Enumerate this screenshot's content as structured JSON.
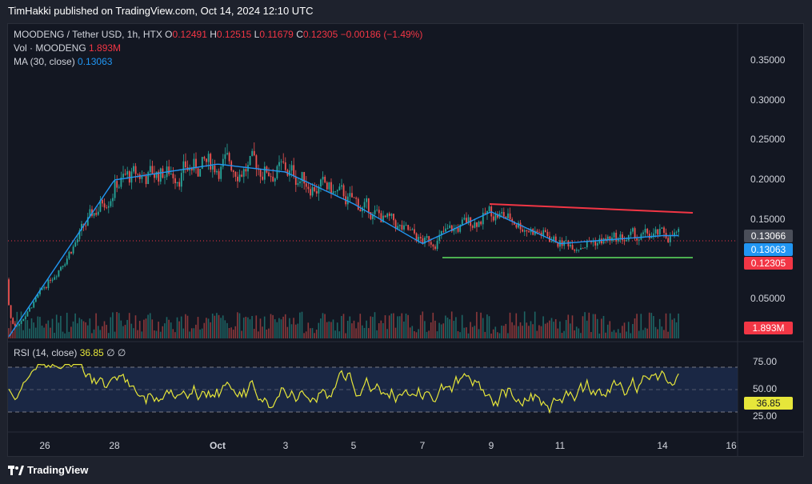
{
  "header": {
    "publisher_text": "TimHakki published on TradingView.com, Oct 14, 2024 12:10 UTC"
  },
  "legend": {
    "symbol": "MOODENG / Tether USD, 1h, HTX",
    "open_label": "O",
    "open": "0.12491",
    "high_label": "H",
    "high": "0.12515",
    "low_label": "L",
    "low": "0.11679",
    "close_label": "C",
    "close": "0.12305",
    "change": "−0.00186 (−1.49%)",
    "vol_label": "Vol · MOODENG",
    "vol_value": "1.893M",
    "ma_label": "MA (30, close)",
    "ma_value": "0.13063",
    "rsi_label": "RSI (14, close)",
    "rsi_value": "36.85",
    "rsi_extra1": "∅",
    "rsi_extra2": "∅"
  },
  "price_axis": {
    "labels": [
      "0.35000",
      "0.30000",
      "0.25000",
      "0.20000",
      "0.15000",
      "0.05000"
    ],
    "box_ma_close": "0.13066",
    "box_ma": "0.13063",
    "box_close": "0.12305",
    "box_volume": "1.893M"
  },
  "rsi_axis": {
    "labels": [
      "75.00",
      "50.00",
      "25.00"
    ],
    "box_rsi": "36.85"
  },
  "time_axis": {
    "labels": [
      "26",
      "28",
      "Oct",
      "3",
      "5",
      "7",
      "9",
      "11",
      "14",
      "16"
    ]
  },
  "colors": {
    "up": "#26a69a",
    "down": "#ef5350",
    "ma": "#2196f3",
    "rsi": "#e6e63a",
    "resistance": "#f23645",
    "support": "#4caf50"
  },
  "chart_data": {
    "type": "line",
    "title": "MOODENG / Tether USD, 1h, HTX",
    "price_scale_labels": [
      0.35,
      0.3,
      0.25,
      0.2,
      0.15,
      0.05
    ],
    "x": [
      "26",
      "28",
      "Oct",
      "3",
      "5",
      "7",
      "9",
      "11",
      "14"
    ],
    "series": [
      {
        "name": "MA (30, close)",
        "values": [
          0.07,
          0.2,
          0.22,
          0.21,
          0.17,
          0.12,
          0.16,
          0.12,
          0.13
        ]
      }
    ],
    "rsi": {
      "last": 36.85,
      "levels": [
        75,
        50,
        25
      ]
    },
    "last_close": 0.12305,
    "trendlines": [
      {
        "name": "resistance",
        "from": [
          "9",
          0.17
        ],
        "to": [
          "16",
          0.16
        ]
      },
      {
        "name": "support",
        "from": [
          "7",
          0.103
        ],
        "to": [
          "16",
          0.103
        ]
      }
    ]
  },
  "brand": {
    "logo_text": "TradingView"
  }
}
